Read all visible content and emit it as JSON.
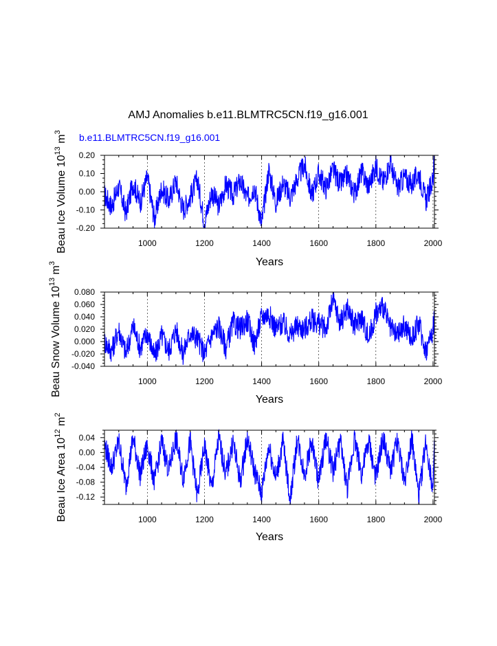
{
  "title": "AMJ Anomalies b.e11.BLMTRC5CN.f19_g16.001",
  "series_label": "b.e11.BLMTRC5CN.f19_g16.001",
  "colors": {
    "series": "#0000ff",
    "axis": "#000000",
    "grid": "#000000"
  },
  "chart_data": [
    {
      "type": "line",
      "ylabel_main": "Beau Ice Volume 10",
      "ylabel_exp": "13",
      "ylabel_unit": " m",
      "ylabel_unit_exp": "3",
      "xlabel": "Years",
      "xlim": [
        850,
        2005
      ],
      "ylim": [
        -0.2,
        0.2
      ],
      "xticks": [
        1000,
        1200,
        1400,
        1600,
        1800,
        2000
      ],
      "xtick_labels": [
        "1000",
        "1200",
        "1400",
        "1600",
        "1800",
        "2000"
      ],
      "yticks": [
        -0.2,
        -0.1,
        0.0,
        0.1,
        0.2
      ],
      "ytick_labels": [
        "-0.20",
        "-0.10",
        "0.00",
        "0.10",
        "0.20"
      ],
      "grid_x": [
        1000,
        1200,
        1400,
        1600,
        1800,
        2000
      ],
      "series": [
        {
          "name": "b.e11.BLMTRC5CN.f19_g16.001",
          "x": [
            850,
            875,
            900,
            925,
            950,
            975,
            1000,
            1025,
            1050,
            1075,
            1100,
            1125,
            1150,
            1175,
            1200,
            1225,
            1250,
            1275,
            1300,
            1325,
            1350,
            1375,
            1400,
            1425,
            1450,
            1475,
            1500,
            1525,
            1550,
            1575,
            1600,
            1625,
            1650,
            1675,
            1700,
            1725,
            1750,
            1775,
            1800,
            1825,
            1850,
            1875,
            1900,
            1925,
            1950,
            1975,
            2000,
            2005
          ],
          "values": [
            -0.02,
            -0.08,
            0.03,
            -0.12,
            0.05,
            -0.06,
            0.08,
            -0.15,
            0.02,
            -0.05,
            0.06,
            -0.1,
            -0.03,
            0.07,
            -0.17,
            0.0,
            -0.08,
            0.04,
            -0.02,
            0.06,
            -0.04,
            0.03,
            -0.18,
            0.12,
            -0.06,
            0.05,
            -0.03,
            0.07,
            0.15,
            -0.02,
            0.1,
            0.02,
            0.12,
            0.04,
            0.09,
            -0.01,
            0.11,
            0.03,
            0.14,
            0.05,
            0.16,
            0.02,
            0.08,
            0.04,
            0.1,
            -0.05,
            0.07,
            0.18
          ]
        }
      ]
    },
    {
      "type": "line",
      "ylabel_main": "Beau Snow Volume 10",
      "ylabel_exp": "13",
      "ylabel_unit": " m",
      "ylabel_unit_exp": "3",
      "xlabel": "Years",
      "xlim": [
        850,
        2005
      ],
      "ylim": [
        -0.04,
        0.08
      ],
      "xticks": [
        1000,
        1200,
        1400,
        1600,
        1800,
        2000
      ],
      "xtick_labels": [
        "1000",
        "1200",
        "1400",
        "1600",
        "1800",
        "2000"
      ],
      "yticks": [
        -0.04,
        -0.02,
        0.0,
        0.02,
        0.04,
        0.06,
        0.08
      ],
      "ytick_labels": [
        "-0.040",
        "-0.020",
        "0.000",
        "0.020",
        "0.040",
        "0.060",
        "0.080"
      ],
      "grid_x": [
        1000,
        1200,
        1400,
        1600,
        1800,
        2000
      ],
      "series": [
        {
          "name": "b.e11.BLMTRC5CN.f19_g16.001",
          "x": [
            850,
            875,
            900,
            925,
            950,
            975,
            1000,
            1025,
            1050,
            1075,
            1100,
            1125,
            1150,
            1175,
            1200,
            1225,
            1250,
            1275,
            1300,
            1325,
            1350,
            1375,
            1400,
            1425,
            1450,
            1475,
            1500,
            1525,
            1550,
            1575,
            1600,
            1625,
            1650,
            1675,
            1700,
            1725,
            1750,
            1775,
            1800,
            1825,
            1850,
            1875,
            1900,
            1925,
            1950,
            1975,
            2000,
            2005
          ],
          "values": [
            0.0,
            -0.015,
            0.02,
            -0.02,
            0.025,
            -0.01,
            0.015,
            -0.025,
            0.01,
            -0.015,
            0.02,
            -0.02,
            0.015,
            0.005,
            -0.02,
            0.01,
            0.025,
            -0.01,
            0.03,
            0.02,
            0.035,
            -0.005,
            0.04,
            0.045,
            0.02,
            0.03,
            0.01,
            0.025,
            0.02,
            0.035,
            0.03,
            0.02,
            0.068,
            0.03,
            0.055,
            0.025,
            0.04,
            0.005,
            0.045,
            0.058,
            0.02,
            0.01,
            0.025,
            0.005,
            0.03,
            -0.015,
            0.02,
            0.04
          ]
        }
      ]
    },
    {
      "type": "line",
      "ylabel_main": "Beau Ice Area 10",
      "ylabel_exp": "12",
      "ylabel_unit": " m",
      "ylabel_unit_exp": "2",
      "xlabel": "Years",
      "xlim": [
        850,
        2005
      ],
      "ylim": [
        -0.14,
        0.06
      ],
      "xticks": [
        1000,
        1200,
        1400,
        1600,
        1800,
        2000
      ],
      "xtick_labels": [
        "1000",
        "1200",
        "1400",
        "1600",
        "1800",
        "2000"
      ],
      "yticks": [
        -0.12,
        -0.08,
        -0.04,
        0.0,
        0.04
      ],
      "ytick_labels": [
        "-0.12",
        "-0.08",
        "-0.04",
        "0.00",
        "0.04"
      ],
      "grid_x": [
        1000,
        1200,
        1400,
        1600,
        1800,
        2000
      ],
      "series": [
        {
          "name": "b.e11.BLMTRC5CN.f19_g16.001",
          "x": [
            850,
            875,
            900,
            925,
            950,
            975,
            1000,
            1025,
            1050,
            1075,
            1100,
            1125,
            1150,
            1175,
            1200,
            1225,
            1250,
            1275,
            1300,
            1325,
            1350,
            1375,
            1400,
            1425,
            1450,
            1475,
            1500,
            1525,
            1550,
            1575,
            1600,
            1625,
            1650,
            1675,
            1700,
            1725,
            1750,
            1775,
            1800,
            1825,
            1850,
            1875,
            1900,
            1925,
            1950,
            1975,
            2000,
            2005
          ],
          "values": [
            0.02,
            -0.04,
            0.03,
            -0.09,
            0.04,
            -0.06,
            0.02,
            -0.08,
            0.03,
            -0.05,
            0.04,
            -0.07,
            0.03,
            -0.12,
            0.02,
            -0.1,
            0.04,
            -0.06,
            0.03,
            -0.08,
            0.04,
            -0.05,
            -0.11,
            0.02,
            -0.07,
            0.03,
            -0.13,
            0.04,
            -0.06,
            0.03,
            -0.08,
            0.04,
            -0.05,
            0.03,
            -0.1,
            0.04,
            -0.06,
            0.03,
            -0.07,
            0.04,
            -0.05,
            0.03,
            -0.08,
            0.04,
            -0.12,
            0.03,
            -0.1,
            0.02
          ]
        }
      ]
    }
  ]
}
